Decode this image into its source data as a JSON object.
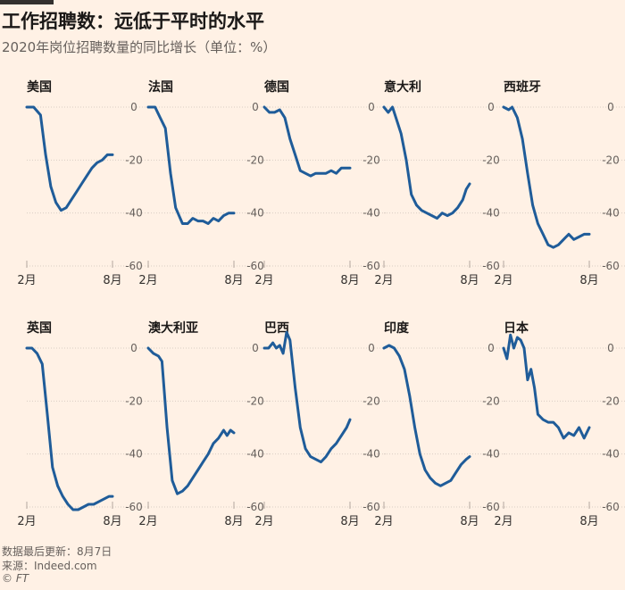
{
  "title": "工作招聘数：远低于平时的水平",
  "subtitle": "2020年岗位招聘数量的同比增长（单位：%）",
  "footer": {
    "date": "数据最后更新：8月7日",
    "source": "来源：Indeed.com",
    "credit": "© FT"
  },
  "colors": {
    "line": "#1F5C99",
    "grid": "#D9CDC3",
    "background": "#FFF1E5",
    "text": "#33302E"
  },
  "chart_data": [
    {
      "type": "line",
      "title": "美国",
      "x_ticks": [
        "2月",
        "8月"
      ],
      "y_ticks": [
        "0",
        "-20",
        "-40",
        "-60"
      ],
      "ylim": [
        -60,
        0
      ],
      "x": [
        0,
        0.08,
        0.16,
        0.22,
        0.28,
        0.34,
        0.4,
        0.46,
        0.52,
        0.58,
        0.64,
        0.7,
        0.76,
        0.82,
        0.88,
        0.94,
        1.0
      ],
      "values": [
        0,
        0,
        -3,
        -18,
        -30,
        -36,
        -39,
        -38,
        -35,
        -32,
        -29,
        -26,
        -23,
        -21,
        -20,
        -18,
        -18
      ]
    },
    {
      "type": "line",
      "title": "法国",
      "x_ticks": [
        "2月",
        "8月"
      ],
      "y_ticks": [
        "0",
        "-20",
        "-40",
        "-60"
      ],
      "ylim": [
        -60,
        0
      ],
      "x": [
        0,
        0.08,
        0.14,
        0.2,
        0.26,
        0.32,
        0.4,
        0.46,
        0.52,
        0.58,
        0.64,
        0.7,
        0.76,
        0.82,
        0.88,
        0.94,
        1.0
      ],
      "values": [
        0,
        0,
        -4,
        -8,
        -25,
        -38,
        -44,
        -44,
        -42,
        -43,
        -43,
        -44,
        -42,
        -43,
        -41,
        -40,
        -40
      ]
    },
    {
      "type": "line",
      "title": "德国",
      "x_ticks": [
        "2月",
        "8月"
      ],
      "y_ticks": [
        "0",
        "-20",
        "-40",
        "-60"
      ],
      "ylim": [
        -60,
        0
      ],
      "x": [
        0,
        0.06,
        0.12,
        0.18,
        0.24,
        0.3,
        0.36,
        0.42,
        0.48,
        0.54,
        0.6,
        0.66,
        0.72,
        0.78,
        0.84,
        0.9,
        0.96,
        1.0
      ],
      "values": [
        0,
        -2,
        -2,
        -1,
        -4,
        -12,
        -18,
        -24,
        -25,
        -26,
        -25,
        -25,
        -25,
        -24,
        -25,
        -23,
        -23,
        -23
      ]
    },
    {
      "type": "line",
      "title": "意大利",
      "x_ticks": [
        "2月",
        "8月"
      ],
      "y_ticks": [
        "0",
        "-20",
        "-40",
        "-60"
      ],
      "ylim": [
        -60,
        0
      ],
      "x": [
        0,
        0.05,
        0.1,
        0.15,
        0.2,
        0.26,
        0.32,
        0.38,
        0.44,
        0.5,
        0.56,
        0.62,
        0.68,
        0.74,
        0.8,
        0.86,
        0.92,
        0.96,
        1.0
      ],
      "values": [
        0,
        -2,
        0,
        -5,
        -10,
        -20,
        -33,
        -37,
        -39,
        -40,
        -41,
        -42,
        -40,
        -41,
        -40,
        -38,
        -35,
        -31,
        -29
      ]
    },
    {
      "type": "line",
      "title": "西班牙",
      "x_ticks": [
        "2月",
        "8月"
      ],
      "y_ticks": [
        "0",
        "-20",
        "-40",
        "-60"
      ],
      "ylim": [
        -60,
        0
      ],
      "x": [
        0,
        0.06,
        0.1,
        0.16,
        0.22,
        0.28,
        0.34,
        0.4,
        0.46,
        0.52,
        0.58,
        0.64,
        0.7,
        0.76,
        0.82,
        0.88,
        0.94,
        1.0
      ],
      "values": [
        0,
        -1,
        0,
        -4,
        -12,
        -25,
        -37,
        -44,
        -48,
        -52,
        -53,
        -52,
        -50,
        -48,
        -50,
        -49,
        -48,
        -48
      ]
    },
    {
      "type": "line",
      "title": "英国",
      "x_ticks": [
        "2月",
        "8月"
      ],
      "y_ticks": [
        "0",
        "-20",
        "-40",
        "-60"
      ],
      "ylim": [
        -60,
        0
      ],
      "x": [
        0,
        0.06,
        0.12,
        0.18,
        0.24,
        0.3,
        0.36,
        0.42,
        0.48,
        0.54,
        0.6,
        0.66,
        0.72,
        0.78,
        0.84,
        0.9,
        0.96,
        1.0
      ],
      "values": [
        0,
        0,
        -2,
        -6,
        -25,
        -45,
        -52,
        -56,
        -59,
        -61,
        -61,
        -60,
        -59,
        -59,
        -58,
        -57,
        -56,
        -56
      ]
    },
    {
      "type": "line",
      "title": "澳大利亚",
      "x_ticks": [
        "2月",
        "8月"
      ],
      "y_ticks": [
        "0",
        "-20",
        "-40",
        "-60"
      ],
      "ylim": [
        -60,
        0
      ],
      "x": [
        0,
        0.06,
        0.12,
        0.16,
        0.22,
        0.28,
        0.34,
        0.4,
        0.46,
        0.52,
        0.58,
        0.64,
        0.7,
        0.76,
        0.82,
        0.88,
        0.92,
        0.96,
        1.0
      ],
      "values": [
        0,
        -2,
        -3,
        -5,
        -30,
        -50,
        -55,
        -54,
        -52,
        -49,
        -46,
        -43,
        -40,
        -36,
        -34,
        -31,
        -33,
        -31,
        -32
      ]
    },
    {
      "type": "line",
      "title": "巴西",
      "x_ticks": [
        "2月",
        "8月"
      ],
      "y_ticks": [
        "0",
        "-20",
        "-40",
        "-60"
      ],
      "ylim": [
        -60,
        0
      ],
      "x": [
        0,
        0.05,
        0.1,
        0.14,
        0.18,
        0.22,
        0.26,
        0.3,
        0.36,
        0.42,
        0.48,
        0.54,
        0.6,
        0.66,
        0.72,
        0.78,
        0.84,
        0.9,
        0.96,
        1.0
      ],
      "values": [
        0,
        0,
        2,
        0,
        1,
        -2,
        6,
        3,
        -15,
        -30,
        -38,
        -41,
        -42,
        -43,
        -41,
        -38,
        -36,
        -33,
        -30,
        -27
      ]
    },
    {
      "type": "line",
      "title": "印度",
      "x_ticks": [
        "2月",
        "8月"
      ],
      "y_ticks": [
        "0",
        "-20",
        "-40",
        "-60"
      ],
      "ylim": [
        -60,
        0
      ],
      "x": [
        0,
        0.06,
        0.12,
        0.18,
        0.24,
        0.3,
        0.36,
        0.42,
        0.48,
        0.54,
        0.6,
        0.66,
        0.72,
        0.78,
        0.84,
        0.9,
        0.96,
        1.0
      ],
      "values": [
        0,
        1,
        0,
        -3,
        -8,
        -18,
        -30,
        -40,
        -46,
        -49,
        -51,
        -52,
        -51,
        -50,
        -47,
        -44,
        -42,
        -41
      ]
    },
    {
      "type": "line",
      "title": "日本",
      "x_ticks": [
        "2月",
        "8月"
      ],
      "y_ticks": [
        "0",
        "-20",
        "-40",
        "-60"
      ],
      "ylim": [
        -60,
        0
      ],
      "x": [
        0,
        0.04,
        0.08,
        0.12,
        0.16,
        0.2,
        0.24,
        0.28,
        0.32,
        0.36,
        0.4,
        0.46,
        0.52,
        0.58,
        0.64,
        0.7,
        0.76,
        0.82,
        0.88,
        0.94,
        1.0
      ],
      "values": [
        0,
        -4,
        5,
        0,
        4,
        3,
        0,
        -12,
        -8,
        -15,
        -25,
        -27,
        -28,
        -28,
        -30,
        -34,
        -32,
        -33,
        -30,
        -34,
        -30
      ]
    }
  ]
}
